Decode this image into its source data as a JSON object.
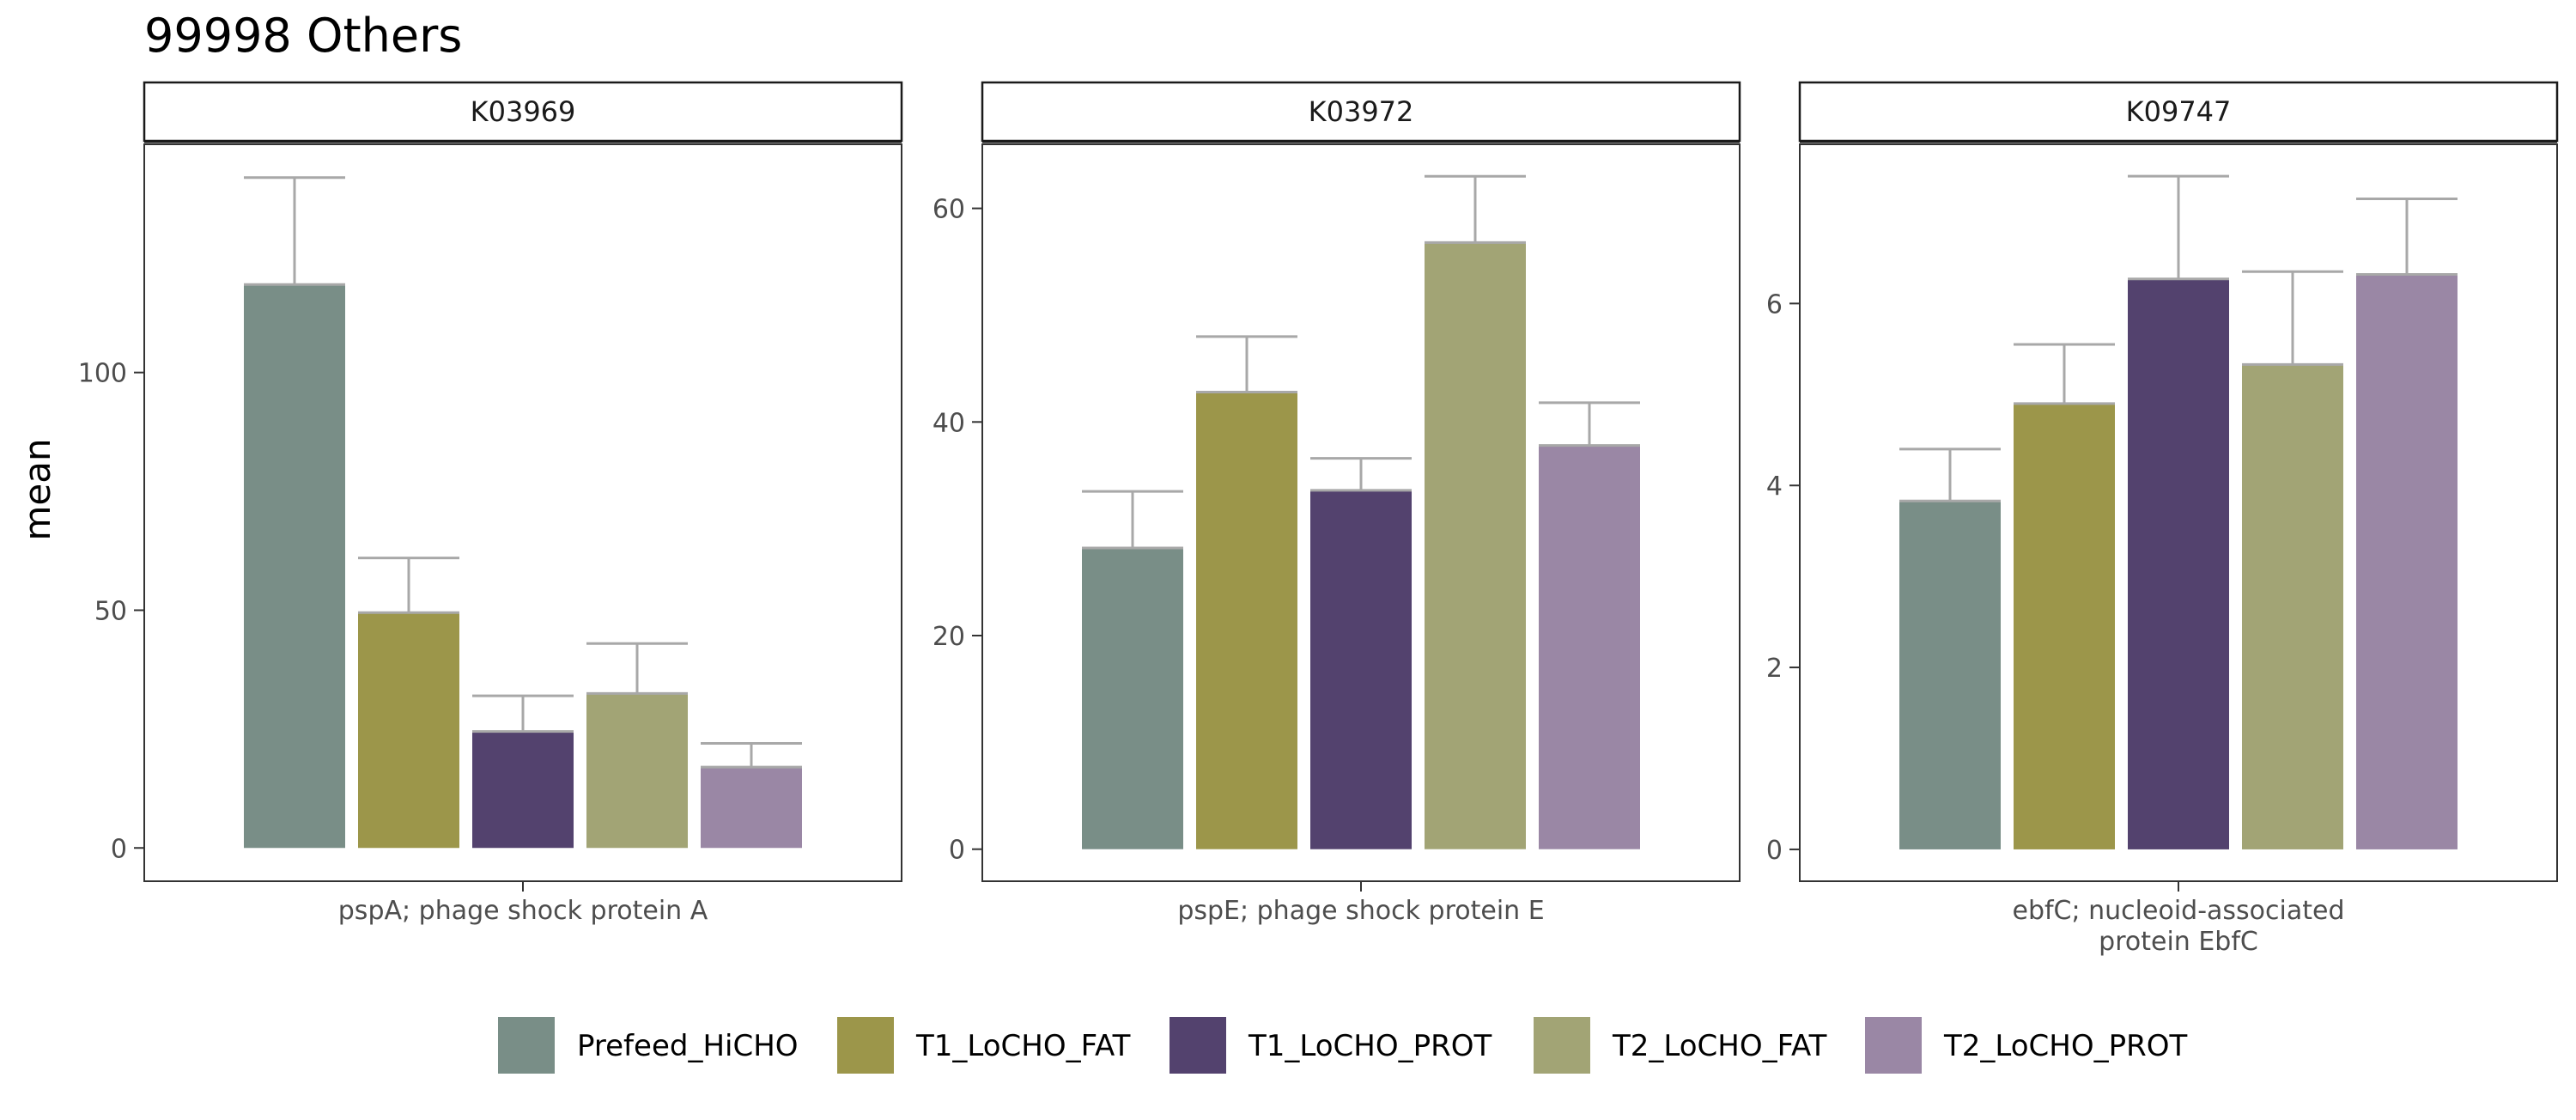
{
  "title": "99998 Others",
  "chart_data": {
    "type": "bar",
    "title": "99998 Others",
    "ylabel": "mean",
    "legend_position": "bottom",
    "grid": false,
    "legend": [
      {
        "name": "Prefeed_HiCHO",
        "color": "#798E87"
      },
      {
        "name": "T1_LoCHO_FAT",
        "color": "#9C964A"
      },
      {
        "name": "T1_LoCHO_PROT",
        "color": "#53426E"
      },
      {
        "name": "T2_LoCHO_FAT",
        "color": "#A2A475"
      },
      {
        "name": "T2_LoCHO_PROT",
        "color": "#9A87A5"
      }
    ],
    "panels": [
      {
        "strip": "K03969",
        "xlabel": "pspA; phage shock protein A",
        "ylim": [
          -7,
          148
        ],
        "yticks": [
          0,
          50,
          100
        ],
        "values": [
          118.5,
          49.5,
          24.5,
          32.5,
          17
        ],
        "errors": [
          141,
          61,
          32,
          43,
          22
        ]
      },
      {
        "strip": "K03972",
        "xlabel": "pspE; phage shock protein E",
        "ylim": [
          -3,
          66
        ],
        "yticks": [
          0,
          20,
          40,
          60
        ],
        "values": [
          28.2,
          42.8,
          33.6,
          56.8,
          37.8
        ],
        "errors": [
          33.5,
          48,
          36.6,
          63,
          41.8
        ]
      },
      {
        "strip": "K09747",
        "xlabel_lines": [
          "ebfC; nucleoid-associated",
          "protein EbfC"
        ],
        "ylim": [
          -0.35,
          7.75
        ],
        "yticks": [
          0,
          2,
          4,
          6
        ],
        "values": [
          3.83,
          4.9,
          6.27,
          5.33,
          6.32
        ],
        "errors": [
          4.4,
          5.55,
          7.4,
          6.35,
          7.15
        ]
      }
    ]
  }
}
